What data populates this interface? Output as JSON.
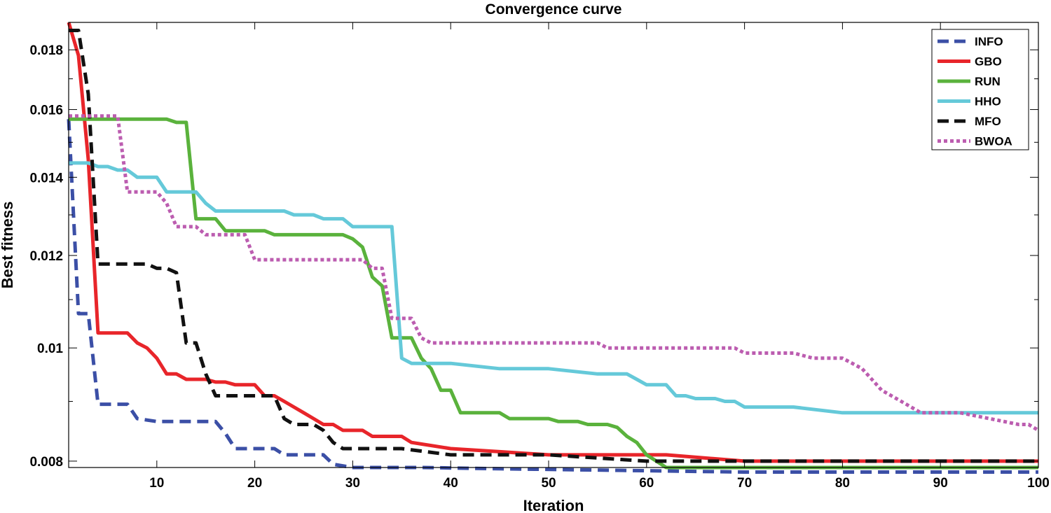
{
  "chart_data": {
    "type": "line",
    "title": "Convergence curve",
    "xlabel": "Iteration",
    "ylabel": "Best fitness",
    "xlim": [
      1,
      100
    ],
    "ylim": [
      0.0079,
      0.019
    ],
    "yscale": "log",
    "xticks": [
      10,
      20,
      30,
      40,
      50,
      60,
      70,
      80,
      90,
      100
    ],
    "xtick_labels": [
      "10",
      "20",
      "30",
      "40",
      "50",
      "60",
      "70",
      "80",
      "90",
      "100"
    ],
    "yticks": [
      0.008,
      0.01,
      0.012,
      0.014,
      0.016,
      0.018
    ],
    "ytick_labels": [
      "0.008",
      "0.01",
      "0.012",
      "0.014",
      "0.016",
      "0.018"
    ],
    "grid": false,
    "legend_position": "top-right",
    "series": [
      {
        "name": "INFO",
        "color": "#3b4fa6",
        "style": "dashed",
        "x": [
          1,
          2,
          3,
          4,
          6,
          7,
          8,
          10,
          13,
          14,
          15,
          16,
          17,
          18,
          22,
          23,
          27,
          28,
          30,
          37,
          45,
          60,
          70,
          100
        ],
        "y": [
          0.0157,
          0.0107,
          0.0107,
          0.00895,
          0.00895,
          0.00895,
          0.0087,
          0.00865,
          0.00865,
          0.00865,
          0.00865,
          0.00865,
          0.00845,
          0.0082,
          0.0082,
          0.0081,
          0.0081,
          0.00795,
          0.0079,
          0.0079,
          0.00788,
          0.00785,
          0.00783,
          0.00783
        ]
      },
      {
        "name": "GBO",
        "color": "#e8252a",
        "style": "solid",
        "x": [
          1,
          2,
          3,
          4,
          6,
          7,
          8,
          9,
          10,
          11,
          12,
          13,
          15,
          16,
          17,
          18,
          19,
          20,
          21,
          22,
          23,
          24,
          25,
          26,
          27,
          28,
          29,
          30,
          31,
          32,
          34,
          35,
          36,
          40,
          45,
          50,
          55,
          60,
          62,
          70,
          80,
          90,
          100
        ],
        "y": [
          0.019,
          0.0178,
          0.0145,
          0.0103,
          0.0103,
          0.0103,
          0.0101,
          0.01,
          0.0098,
          0.0095,
          0.0095,
          0.0094,
          0.0094,
          0.00935,
          0.00935,
          0.0093,
          0.0093,
          0.0093,
          0.0091,
          0.0091,
          0.009,
          0.0089,
          0.0088,
          0.0087,
          0.0086,
          0.0086,
          0.0085,
          0.0085,
          0.0085,
          0.0084,
          0.0084,
          0.0084,
          0.0083,
          0.0082,
          0.00815,
          0.0081,
          0.0081,
          0.0081,
          0.0081,
          0.008,
          0.008,
          0.008,
          0.008
        ]
      },
      {
        "name": "RUN",
        "color": "#5ab23c",
        "style": "solid",
        "x": [
          1,
          11,
          12,
          13,
          14,
          15,
          16,
          17,
          18,
          19,
          20,
          21,
          22,
          23,
          24,
          25,
          26,
          27,
          28,
          29,
          30,
          31,
          32,
          33,
          34,
          35,
          36,
          37,
          38,
          39,
          40,
          41,
          42,
          43,
          44,
          45,
          46,
          47,
          48,
          49,
          50,
          51,
          52,
          53,
          54,
          55,
          56,
          57,
          58,
          59,
          60,
          61,
          62,
          63,
          70,
          80,
          90,
          100
        ],
        "y": [
          0.0157,
          0.0157,
          0.0156,
          0.0156,
          0.0129,
          0.0129,
          0.0129,
          0.0126,
          0.0126,
          0.0126,
          0.0126,
          0.0126,
          0.0125,
          0.0125,
          0.0125,
          0.0125,
          0.0125,
          0.0125,
          0.0125,
          0.0125,
          0.0124,
          0.0122,
          0.0115,
          0.0113,
          0.0102,
          0.0102,
          0.0102,
          0.0098,
          0.0096,
          0.0092,
          0.0092,
          0.0088,
          0.0088,
          0.0088,
          0.0088,
          0.0088,
          0.0087,
          0.0087,
          0.0087,
          0.0087,
          0.0087,
          0.00865,
          0.00865,
          0.00865,
          0.0086,
          0.0086,
          0.0086,
          0.00855,
          0.0084,
          0.0083,
          0.0081,
          0.008,
          0.0079,
          0.0079,
          0.0079,
          0.0079,
          0.0079,
          0.0079
        ]
      },
      {
        "name": "HHO",
        "color": "#65c9d9",
        "style": "solid",
        "x": [
          1,
          3,
          4,
          5,
          6,
          7,
          8,
          9,
          10,
          11,
          12,
          13,
          14,
          15,
          16,
          17,
          18,
          19,
          20,
          21,
          22,
          23,
          24,
          25,
          26,
          27,
          28,
          29,
          30,
          31,
          32,
          33,
          34,
          35,
          36,
          37,
          38,
          39,
          40,
          45,
          50,
          55,
          57,
          58,
          59,
          60,
          61,
          62,
          63,
          64,
          65,
          66,
          67,
          68,
          69,
          70,
          75,
          80,
          85,
          90,
          100
        ],
        "y": [
          0.0144,
          0.0144,
          0.0143,
          0.0143,
          0.0142,
          0.0142,
          0.014,
          0.014,
          0.014,
          0.0136,
          0.0136,
          0.0136,
          0.0136,
          0.0133,
          0.0131,
          0.0131,
          0.0131,
          0.0131,
          0.0131,
          0.0131,
          0.0131,
          0.0131,
          0.013,
          0.013,
          0.013,
          0.0129,
          0.0129,
          0.0129,
          0.0127,
          0.0127,
          0.0127,
          0.0127,
          0.0127,
          0.0098,
          0.0097,
          0.0097,
          0.0097,
          0.0097,
          0.0097,
          0.0096,
          0.0096,
          0.0095,
          0.0095,
          0.0095,
          0.0094,
          0.0093,
          0.0093,
          0.0093,
          0.0091,
          0.0091,
          0.00905,
          0.00905,
          0.00905,
          0.009,
          0.009,
          0.0089,
          0.0089,
          0.0088,
          0.0088,
          0.0088,
          0.0088
        ]
      },
      {
        "name": "MFO",
        "color": "#111111",
        "style": "dashed",
        "x": [
          1,
          2,
          3,
          4,
          5,
          6,
          7,
          8,
          9,
          10,
          11,
          12,
          13,
          14,
          15,
          16,
          17,
          18,
          19,
          20,
          21,
          22,
          23,
          24,
          25,
          26,
          27,
          28,
          29,
          30,
          31,
          32,
          35,
          40,
          45,
          50,
          60,
          70,
          80,
          90,
          100
        ],
        "y": [
          0.0187,
          0.0187,
          0.0165,
          0.0118,
          0.0118,
          0.0118,
          0.0118,
          0.0118,
          0.0118,
          0.0117,
          0.0117,
          0.0116,
          0.0101,
          0.0101,
          0.0095,
          0.0091,
          0.0091,
          0.0091,
          0.0091,
          0.0091,
          0.0091,
          0.0091,
          0.0087,
          0.0086,
          0.0086,
          0.0086,
          0.0085,
          0.0083,
          0.0082,
          0.0082,
          0.0082,
          0.0082,
          0.0082,
          0.0081,
          0.0081,
          0.0081,
          0.008,
          0.008,
          0.008,
          0.008,
          0.008
        ]
      },
      {
        "name": "BWOA",
        "color": "#bc5db0",
        "style": "dotted",
        "x": [
          1,
          6,
          7,
          8,
          9,
          10,
          11,
          12,
          13,
          14,
          15,
          16,
          17,
          18,
          19,
          20,
          21,
          22,
          23,
          24,
          25,
          26,
          27,
          28,
          29,
          30,
          31,
          32,
          33,
          34,
          35,
          36,
          37,
          38,
          40,
          45,
          50,
          55,
          56,
          60,
          65,
          69,
          70,
          75,
          77,
          78,
          79,
          80,
          81,
          82,
          83,
          84,
          85,
          86,
          87,
          88,
          89,
          90,
          92,
          95,
          98,
          99,
          100
        ],
        "y": [
          0.0158,
          0.0158,
          0.0136,
          0.0136,
          0.0136,
          0.0136,
          0.0133,
          0.0127,
          0.0127,
          0.0127,
          0.0125,
          0.0125,
          0.0125,
          0.0125,
          0.0125,
          0.0119,
          0.0119,
          0.0119,
          0.0119,
          0.0119,
          0.0119,
          0.0119,
          0.0119,
          0.0119,
          0.0119,
          0.0119,
          0.0119,
          0.0117,
          0.0117,
          0.0106,
          0.0106,
          0.0106,
          0.0102,
          0.0101,
          0.0101,
          0.0101,
          0.0101,
          0.0101,
          0.01,
          0.01,
          0.01,
          0.01,
          0.0099,
          0.0099,
          0.0098,
          0.0098,
          0.0098,
          0.0098,
          0.0097,
          0.0096,
          0.0094,
          0.0092,
          0.0091,
          0.009,
          0.0089,
          0.0088,
          0.0088,
          0.0088,
          0.0088,
          0.0087,
          0.0086,
          0.0086,
          0.0085
        ]
      }
    ]
  }
}
